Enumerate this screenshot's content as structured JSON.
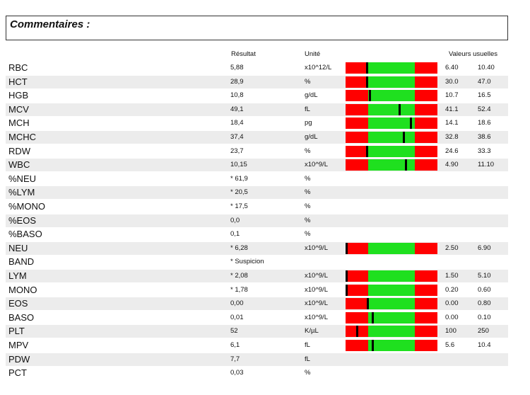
{
  "comment_title": "Commentaires :",
  "headers": {
    "result": "Résultat",
    "unit": "Unité",
    "ref": "Valeurs usuelles"
  },
  "rows": [
    {
      "name": "RBC",
      "result": "5,88",
      "unit": "x10^12/L",
      "bar": true,
      "marker": 0.23,
      "low": "6.40",
      "high": "10.40"
    },
    {
      "name": "HCT",
      "result": "28,9",
      "unit": "%",
      "bar": true,
      "marker": 0.23,
      "low": "30.0",
      "high": "47.0"
    },
    {
      "name": "HGB",
      "result": "10,8",
      "unit": "g/dL",
      "bar": true,
      "marker": 0.26,
      "low": "10.7",
      "high": "16.5"
    },
    {
      "name": "MCV",
      "result": "49,1",
      "unit": "fL",
      "bar": true,
      "marker": 0.59,
      "low": "41.1",
      "high": "52.4"
    },
    {
      "name": "MCH",
      "result": "18,4",
      "unit": "pg",
      "bar": true,
      "marker": 0.72,
      "low": "14.1",
      "high": "18.6"
    },
    {
      "name": "MCHC",
      "result": "37,4",
      "unit": "g/dL",
      "bar": true,
      "marker": 0.64,
      "low": "32.8",
      "high": "38.6"
    },
    {
      "name": "RDW",
      "result": "23,7",
      "unit": "%",
      "bar": true,
      "marker": 0.23,
      "low": "24.6",
      "high": "33.3"
    },
    {
      "name": "WBC",
      "result": "10,15",
      "unit": "x10^9/L",
      "bar": true,
      "marker": 0.66,
      "low": "4.90",
      "high": "11.10"
    },
    {
      "name": "%NEU",
      "result": "* 61,9",
      "unit": "%",
      "bar": false,
      "low": "",
      "high": ""
    },
    {
      "name": "%LYM",
      "result": "* 20,5",
      "unit": "%",
      "bar": false,
      "low": "",
      "high": ""
    },
    {
      "name": "%MONO",
      "result": "* 17,5",
      "unit": "%",
      "bar": false,
      "low": "",
      "high": ""
    },
    {
      "name": "%EOS",
      "result": "0,0",
      "unit": "%",
      "bar": false,
      "low": "",
      "high": ""
    },
    {
      "name": "%BASO",
      "result": "0,1",
      "unit": "%",
      "bar": false,
      "low": "",
      "high": ""
    },
    {
      "name": "NEU",
      "result": "* 6,28",
      "unit": "x10^9/L",
      "bar": true,
      "marker": 0.0,
      "low": "2.50",
      "high": "6.90"
    },
    {
      "name": "BAND",
      "result": "* Suspicion",
      "unit": "",
      "bar": false,
      "low": "",
      "high": ""
    },
    {
      "name": "LYM",
      "result": "* 2,08",
      "unit": "x10^9/L",
      "bar": true,
      "marker": 0.0,
      "low": "1.50",
      "high": "5.10"
    },
    {
      "name": "MONO",
      "result": "* 1,78",
      "unit": "x10^9/L",
      "bar": true,
      "marker": 0.0,
      "low": "0.20",
      "high": "0.60"
    },
    {
      "name": "EOS",
      "result": "0,00",
      "unit": "x10^9/L",
      "bar": true,
      "marker": 0.24,
      "low": "0.00",
      "high": "0.80"
    },
    {
      "name": "BASO",
      "result": "0,01",
      "unit": "x10^9/L",
      "bar": true,
      "marker": 0.29,
      "low": "0.00",
      "high": "0.10"
    },
    {
      "name": "PLT",
      "result": "52",
      "unit": "K/µL",
      "bar": true,
      "marker": 0.12,
      "low": "100",
      "high": "250"
    },
    {
      "name": "MPV",
      "result": "6,1",
      "unit": "fL",
      "bar": true,
      "marker": 0.29,
      "low": "5.6",
      "high": "10.4"
    },
    {
      "name": "PDW",
      "result": "7,7",
      "unit": "fL",
      "bar": false,
      "low": "",
      "high": ""
    },
    {
      "name": "PCT",
      "result": "0,03",
      "unit": "%",
      "bar": false,
      "low": "",
      "high": ""
    }
  ]
}
